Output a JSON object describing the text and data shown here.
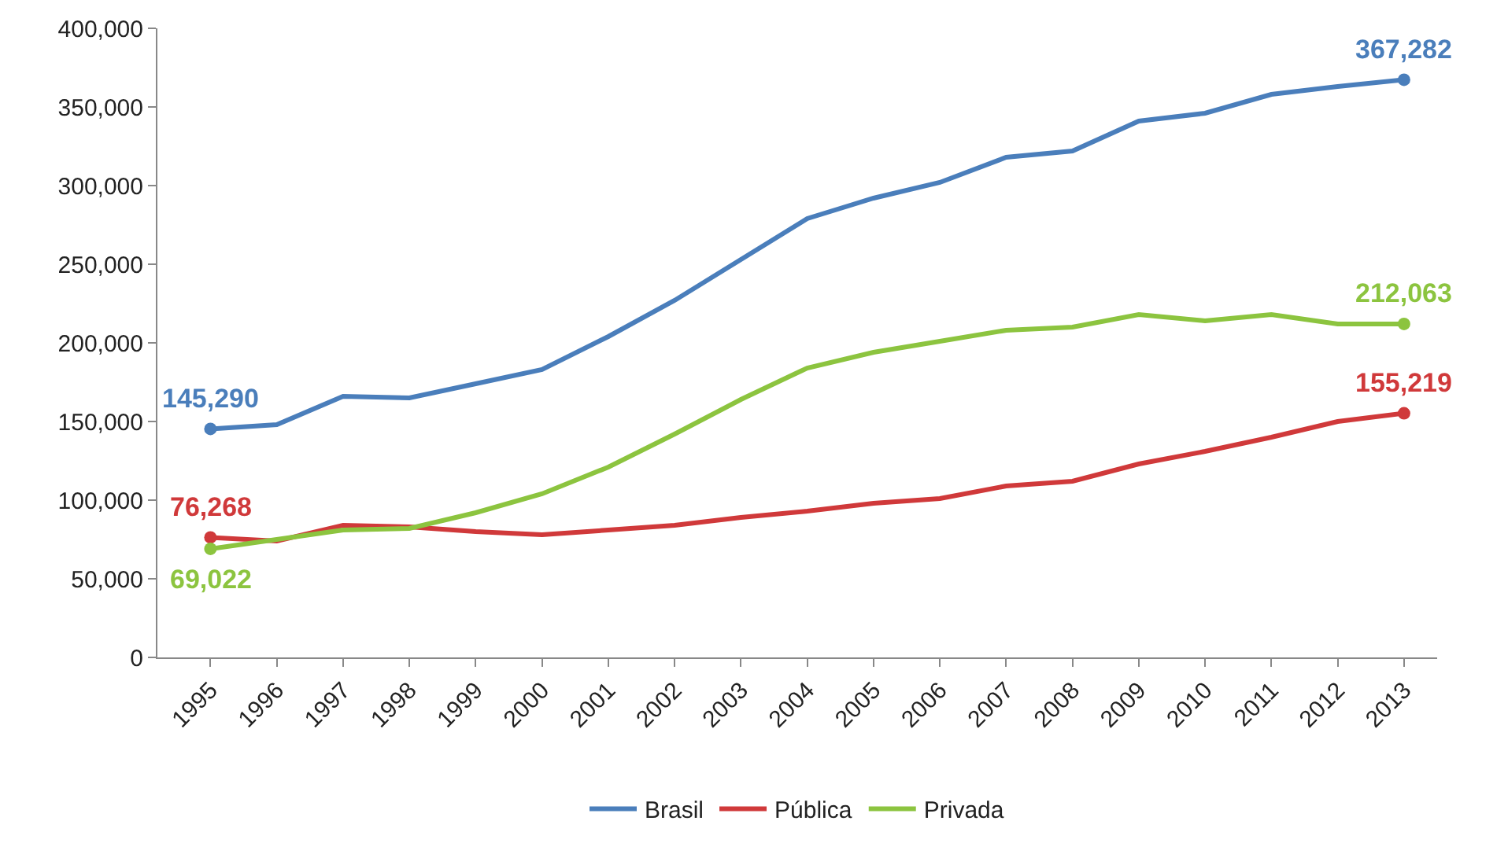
{
  "chart_data": {
    "type": "line",
    "categories": [
      "1995",
      "1996",
      "1997",
      "1998",
      "1999",
      "2000",
      "2001",
      "2002",
      "2003",
      "2004",
      "2005",
      "2006",
      "2007",
      "2008",
      "2009",
      "2010",
      "2011",
      "2012",
      "2013"
    ],
    "series": [
      {
        "name": "Brasil",
        "color": "#4a7ebb",
        "values": [
          145290,
          148000,
          166000,
          165000,
          174000,
          183000,
          204000,
          227000,
          253000,
          279000,
          292000,
          302000,
          318000,
          322000,
          341000,
          346000,
          358000,
          363000,
          367282
        ],
        "value_labels": [
          "145,290",
          null,
          null,
          null,
          null,
          null,
          null,
          null,
          null,
          null,
          null,
          null,
          null,
          null,
          null,
          null,
          null,
          null,
          "367,282"
        ]
      },
      {
        "name": "Pública",
        "color": "#d0393a",
        "values": [
          76268,
          74000,
          84000,
          83000,
          80000,
          78000,
          81000,
          84000,
          89000,
          93000,
          98000,
          101000,
          109000,
          112000,
          123000,
          131000,
          140000,
          150000,
          155219
        ],
        "value_labels": [
          "76,268",
          null,
          null,
          null,
          null,
          null,
          null,
          null,
          null,
          null,
          null,
          null,
          null,
          null,
          null,
          null,
          null,
          null,
          "155,219"
        ]
      },
      {
        "name": "Privada",
        "color": "#8cc43f",
        "values": [
          69022,
          75000,
          81000,
          82000,
          92000,
          104000,
          121000,
          142000,
          164000,
          184000,
          194000,
          201000,
          208000,
          210000,
          218000,
          214000,
          218000,
          212000,
          212063
        ],
        "value_labels": [
          "69,022",
          null,
          null,
          null,
          null,
          null,
          null,
          null,
          null,
          null,
          null,
          null,
          null,
          null,
          null,
          null,
          null,
          null,
          "212,063"
        ]
      }
    ],
    "ylim": [
      0,
      400000
    ],
    "yticks": [
      {
        "value": 0,
        "label": "0"
      },
      {
        "value": 50000,
        "label": "50,000"
      },
      {
        "value": 100000,
        "label": "100,000"
      },
      {
        "value": 150000,
        "label": "150,000"
      },
      {
        "value": 200000,
        "label": "200,000"
      },
      {
        "value": 250000,
        "label": "250,000"
      },
      {
        "value": 300000,
        "label": "300,000"
      },
      {
        "value": 350000,
        "label": "350,000"
      },
      {
        "value": 400000,
        "label": "400,000"
      }
    ],
    "grid": false,
    "legend": "bottom",
    "line_style": "solid"
  }
}
